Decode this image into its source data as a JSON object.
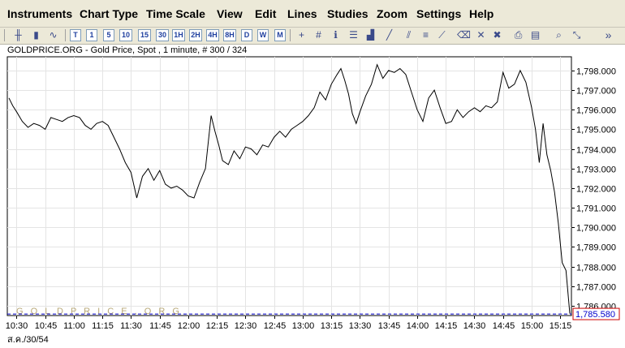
{
  "menu": {
    "items": [
      "Instruments",
      "Chart Type",
      "Time Scale",
      "View",
      "Edit",
      "Lines",
      "Studies",
      "Zoom",
      "Settings",
      "Help"
    ]
  },
  "toolbar": {
    "timescale_buttons": [
      "T",
      "1",
      "5",
      "10",
      "15",
      "30",
      "1H",
      "2H",
      "4H",
      "8H",
      "D",
      "W",
      "M"
    ],
    "chart_type_icons": [
      "ohlc-chart-icon",
      "candlestick-chart-icon",
      "line-chart-icon"
    ],
    "tool_icons": [
      "crosshair-icon",
      "grid-icon",
      "info-icon",
      "study-list-icon",
      "volume-bars-icon",
      "trendline-icon",
      "channel-icon",
      "fibonacci-icon",
      "gann-icon",
      "eraser-icon",
      "delete-icon",
      "erase-all-icon",
      "print-icon",
      "print-preview-icon",
      "zoom-icon",
      "pan-icon"
    ],
    "more_glyph": "»"
  },
  "chart": {
    "title": "GOLDPRICE.ORG - Gold Price, Spot , 1 minute, # 300 / 324",
    "watermark": "G O L D P R I C E . O R G",
    "date_label": "ส.ค./30/54",
    "line_color": "#000000",
    "last_price_color": "#0000cc",
    "last_price_box_color": "#cc0000"
  },
  "chart_data": {
    "type": "line",
    "x_tick_labels": [
      "10:30",
      "10:45",
      "11:00",
      "11:15",
      "11:30",
      "11:45",
      "12:00",
      "12:15",
      "12:30",
      "12:45",
      "13:00",
      "13:15",
      "13:30",
      "13:45",
      "14:00",
      "14:15",
      "14:30",
      "14:45",
      "15:00",
      "15:15"
    ],
    "y_tick_labels": [
      "1,786.000",
      "1,787.000",
      "1,788.000",
      "1,789.000",
      "1,790.000",
      "1,791.000",
      "1,792.000",
      "1,793.000",
      "1,794.000",
      "1,795.000",
      "1,796.000",
      "1,797.000",
      "1,798.000"
    ],
    "ylim": [
      1785.5,
      1798.7
    ],
    "y_ticks": [
      1786,
      1787,
      1788,
      1789,
      1790,
      1791,
      1792,
      1793,
      1794,
      1795,
      1796,
      1797,
      1798
    ],
    "xlim": [
      "10:26",
      "15:20"
    ],
    "last_price": 1785.58,
    "last_price_label": "1,785.580",
    "grid": true,
    "series": [
      {
        "x": [
          "10:26",
          "10:28",
          "10:30",
          "10:33",
          "10:36",
          "10:39",
          "10:42",
          "10:45",
          "10:48",
          "10:51",
          "10:54",
          "10:57",
          "11:00",
          "11:03",
          "11:06",
          "11:09",
          "11:12",
          "11:15",
          "11:18",
          "11:21",
          "11:24",
          "11:27",
          "11:30",
          "11:33",
          "11:36",
          "11:39",
          "11:42",
          "11:45",
          "11:48",
          "11:51",
          "11:54",
          "11:57",
          "12:00",
          "12:03",
          "12:06",
          "12:09",
          "12:12",
          "12:14",
          "12:16",
          "12:18",
          "12:21",
          "12:24",
          "12:27",
          "12:30",
          "12:33",
          "12:36",
          "12:39",
          "12:42",
          "12:45",
          "12:48",
          "12:51",
          "12:54",
          "12:57",
          "13:00",
          "13:03",
          "13:06",
          "13:09",
          "13:12",
          "13:15",
          "13:18",
          "13:20",
          "13:22",
          "13:24",
          "13:26",
          "13:28",
          "13:30",
          "13:33",
          "13:36",
          "13:39",
          "13:42",
          "13:45",
          "13:48",
          "13:51",
          "13:54",
          "13:57",
          "14:00",
          "14:03",
          "14:06",
          "14:09",
          "14:12",
          "14:15",
          "14:18",
          "14:21",
          "14:24",
          "14:27",
          "14:30",
          "14:33",
          "14:36",
          "14:39",
          "14:42",
          "14:45",
          "14:48",
          "14:51",
          "14:54",
          "14:57",
          "15:00",
          "15:02",
          "15:04",
          "15:06",
          "15:08",
          "15:10",
          "15:12",
          "15:14",
          "15:16",
          "15:18",
          "15:20"
        ],
        "y": [
          1796.6,
          1796.2,
          1795.9,
          1795.4,
          1795.1,
          1795.3,
          1795.2,
          1795.0,
          1795.6,
          1795.5,
          1795.4,
          1795.6,
          1795.7,
          1795.6,
          1795.2,
          1795.0,
          1795.3,
          1795.4,
          1795.2,
          1794.6,
          1794.0,
          1793.3,
          1792.8,
          1791.5,
          1792.6,
          1793.0,
          1792.4,
          1792.9,
          1792.2,
          1792.0,
          1792.1,
          1791.9,
          1791.6,
          1791.5,
          1792.3,
          1793.0,
          1795.7,
          1794.9,
          1794.2,
          1793.4,
          1793.2,
          1793.9,
          1793.5,
          1794.1,
          1794.0,
          1793.7,
          1794.2,
          1794.1,
          1794.6,
          1794.9,
          1794.6,
          1795.0,
          1795.2,
          1795.4,
          1795.7,
          1796.1,
          1796.9,
          1796.5,
          1797.3,
          1797.8,
          1798.1,
          1797.5,
          1796.8,
          1795.8,
          1795.3,
          1795.9,
          1796.7,
          1797.3,
          1798.3,
          1797.6,
          1798.0,
          1797.9,
          1798.1,
          1797.8,
          1796.9,
          1796.0,
          1795.4,
          1796.6,
          1797.0,
          1796.1,
          1795.3,
          1795.4,
          1796.0,
          1795.6,
          1795.9,
          1796.1,
          1795.9,
          1796.2,
          1796.1,
          1796.4,
          1797.9,
          1797.1,
          1797.3,
          1798.0,
          1797.4,
          1796.1,
          1795.0,
          1793.3,
          1795.3,
          1793.7,
          1792.9,
          1791.8,
          1790.2,
          1788.2,
          1787.8,
          1785.6
        ]
      }
    ]
  }
}
